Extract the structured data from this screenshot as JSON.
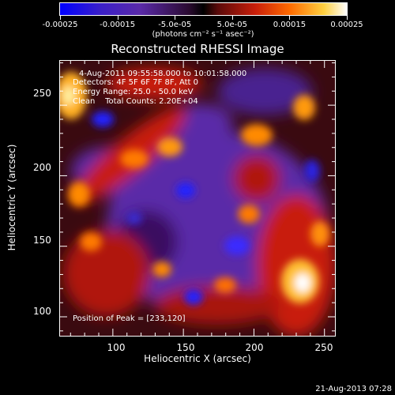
{
  "colorbar": {
    "tick_labels": [
      "-0.00025",
      "-0.00015",
      "-5.0e-05",
      "5.0e-05",
      "0.00015",
      "0.00025"
    ],
    "units": "(photons cm⁻² s⁻¹ asec⁻²)",
    "range": [
      -0.00025,
      0.00025
    ]
  },
  "plot": {
    "title": "Reconstructed RHESSI Image",
    "info_lines": [
      "4-Aug-2011 09:55:58.000 to 10:01:58.000",
      "Detectors: 4F 5F 6F 7F 8F, Att 0",
      "Energy Range: 25.0 - 50.0 keV",
      "Clean    Total Counts: 2.20E+04"
    ],
    "peak_label": "Position of Peak = [233,120]",
    "xlabel": "Heliocentric X (arcsec)",
    "ylabel": "Heliocentric Y (arcsec)",
    "x_ticks": [
      "100",
      "150",
      "200",
      "250"
    ],
    "y_ticks": [
      "250",
      "200",
      "150",
      "100"
    ],
    "x_range": [
      62,
      258
    ],
    "y_range": [
      86,
      282
    ]
  },
  "footer": {
    "timestamp": "21-Aug-2013 07:28"
  },
  "colors": {
    "positive_peak": "#ffffff",
    "positive_mid": "#ff6a00",
    "negative": "#5a2aa8",
    "negative_peak": "#1a1aff"
  }
}
